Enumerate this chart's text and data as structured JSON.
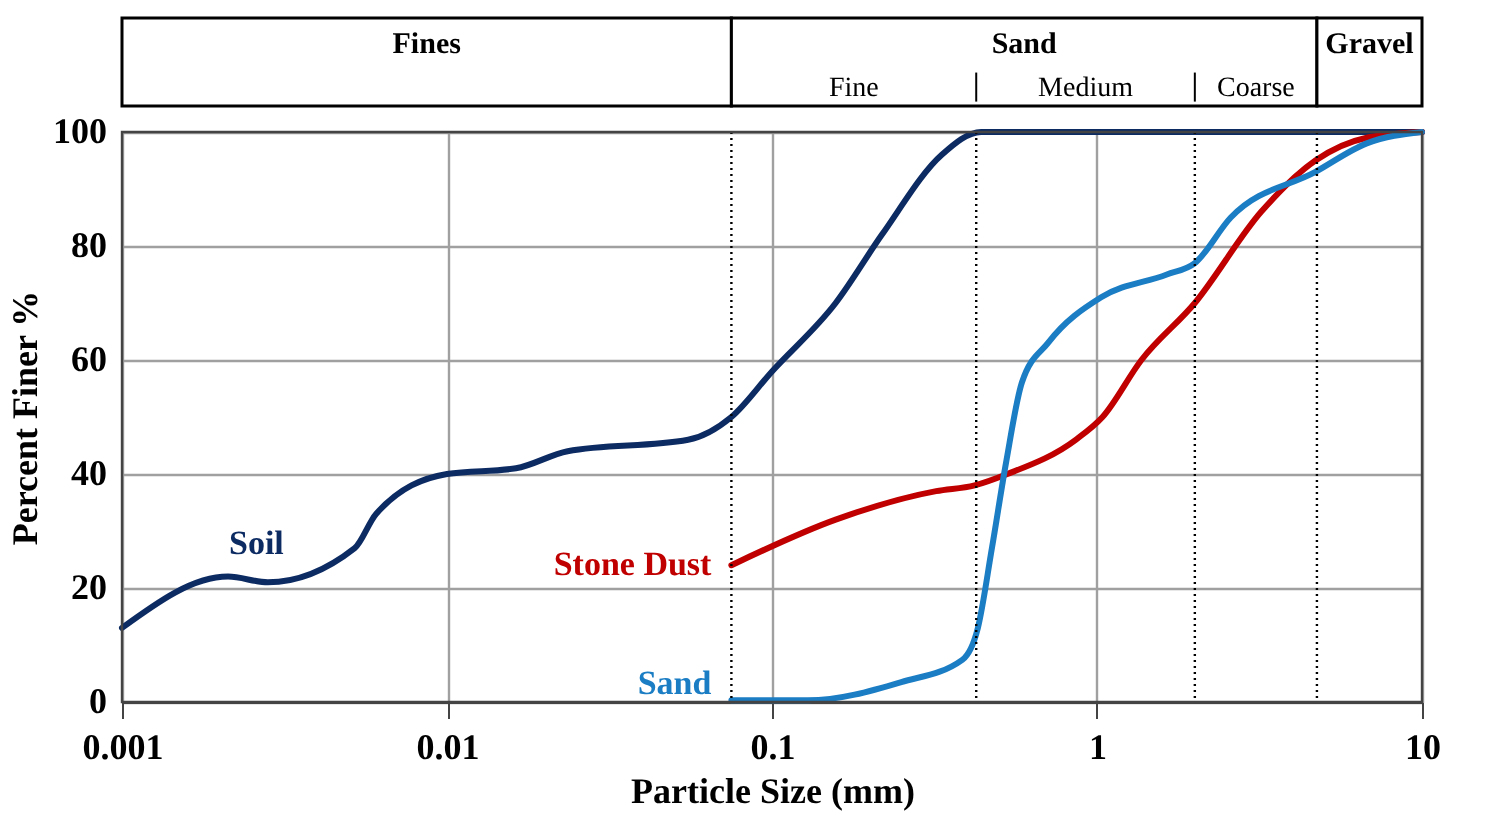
{
  "chart_data": {
    "type": "line",
    "xlabel": "Particle Size (mm)",
    "ylabel": "Percent Finer %",
    "xlim": [
      0.001,
      10
    ],
    "xticks": [
      0.001,
      0.01,
      0.1,
      1,
      10
    ],
    "ylim": [
      0,
      100
    ],
    "yticks": [
      0,
      20,
      40,
      60,
      80,
      100
    ],
    "log": "x",
    "grid": true,
    "legend": false,
    "series": [
      {
        "name": "Soil",
        "color": "#0d2b63",
        "x": [
          0.001,
          0.00212,
          0.00281,
          0.0052,
          0.00605,
          0.01,
          0.0163,
          0.0235,
          0.0552,
          0.075,
          0.1,
          0.157,
          0.218,
          0.333,
          0.44,
          1,
          10
        ],
        "values": [
          13,
          22,
          21,
          27,
          33,
          40,
          41,
          44,
          46,
          50,
          58,
          70,
          82,
          96,
          100,
          100,
          100
        ]
      },
      {
        "name": "Stone Dust",
        "color": "#c00000",
        "x": [
          0.075,
          0.157,
          0.32,
          0.42,
          0.53,
          0.86,
          1.04,
          1.37,
          2.0,
          3.2,
          4.7,
          6.76,
          10
        ],
        "values": [
          24,
          32,
          37,
          38,
          40,
          46,
          50,
          60,
          70,
          86,
          95,
          99,
          100
        ]
      },
      {
        "name": "Sand",
        "color": "#1b7dc4",
        "x": [
          0.075,
          0.129,
          0.25,
          0.385,
          0.43,
          0.475,
          0.525,
          0.587,
          0.707,
          1.03,
          1.64,
          2.0,
          2.58,
          4.7,
          6.76,
          10
        ],
        "values": [
          0.3,
          0.3,
          3.5,
          7.4,
          13,
          27,
          42,
          56,
          63,
          71,
          75,
          77,
          85,
          93,
          98,
          100
        ]
      }
    ],
    "ref_lines": [
      {
        "axis": "x",
        "value": 0.075,
        "line_style": "dotted"
      },
      {
        "axis": "x",
        "value": 0.425,
        "line_style": "dotted"
      },
      {
        "axis": "x",
        "value": 2.0,
        "line_style": "dotted"
      },
      {
        "axis": "x",
        "value": 4.75,
        "line_style": "dotted"
      }
    ],
    "annotations": [
      "Fines",
      "Sand",
      "Gravel",
      "Fine",
      "Medium",
      "Coarse"
    ]
  }
}
